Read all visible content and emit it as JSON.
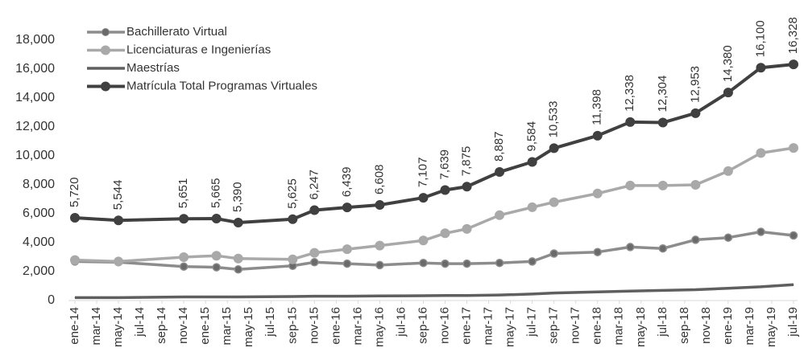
{
  "chart_data": {
    "type": "line",
    "x": [
      "2014-01",
      "2014-05",
      "2014-11",
      "2015-02",
      "2015-04",
      "2015-09",
      "2015-11",
      "2016-02",
      "2016-05",
      "2016-09",
      "2016-11",
      "2017-01",
      "2017-04",
      "2017-07",
      "2017-09",
      "2018-01",
      "2018-04",
      "2018-07",
      "2018-10",
      "2019-01",
      "2019-04",
      "2019-07"
    ],
    "xticks": [
      {
        "value": "2014-01",
        "label": "ene-14"
      },
      {
        "value": "2014-03",
        "label": "mar-14"
      },
      {
        "value": "2014-05",
        "label": "may-14"
      },
      {
        "value": "2014-07",
        "label": "jul-14"
      },
      {
        "value": "2014-09",
        "label": "sep-14"
      },
      {
        "value": "2014-11",
        "label": "nov-14"
      },
      {
        "value": "2015-01",
        "label": "ene-15"
      },
      {
        "value": "2015-03",
        "label": "mar-15"
      },
      {
        "value": "2015-05",
        "label": "may-15"
      },
      {
        "value": "2015-07",
        "label": "jul-15"
      },
      {
        "value": "2015-09",
        "label": "sep-15"
      },
      {
        "value": "2015-11",
        "label": "nov-15"
      },
      {
        "value": "2016-01",
        "label": "ene-16"
      },
      {
        "value": "2016-03",
        "label": "mar-16"
      },
      {
        "value": "2016-05",
        "label": "may-16"
      },
      {
        "value": "2016-07",
        "label": "jul-16"
      },
      {
        "value": "2016-09",
        "label": "sep-16"
      },
      {
        "value": "2016-11",
        "label": "nov-16"
      },
      {
        "value": "2017-01",
        "label": "ene-17"
      },
      {
        "value": "2017-03",
        "label": "mar-17"
      },
      {
        "value": "2017-05",
        "label": "may-17"
      },
      {
        "value": "2017-07",
        "label": "jul-17"
      },
      {
        "value": "2017-09",
        "label": "sep-17"
      },
      {
        "value": "2017-11",
        "label": "nov-17"
      },
      {
        "value": "2018-01",
        "label": "ene-18"
      },
      {
        "value": "2018-03",
        "label": "mar-18"
      },
      {
        "value": "2018-05",
        "label": "may-18"
      },
      {
        "value": "2018-07",
        "label": "jul-18"
      },
      {
        "value": "2018-09",
        "label": "sep-18"
      },
      {
        "value": "2018-11",
        "label": "nov-18"
      },
      {
        "value": "2019-01",
        "label": "ene-19"
      },
      {
        "value": "2019-03",
        "label": "mar-19"
      },
      {
        "value": "2019-05",
        "label": "may-19"
      },
      {
        "value": "2019-07",
        "label": "jul-19"
      }
    ],
    "xlim": [
      "2014-01",
      "2019-07"
    ],
    "ylim": [
      0,
      18000
    ],
    "yticks": [
      0,
      {
        "value": 2000,
        "label": "2,000"
      },
      {
        "value": 4000,
        "label": "4,000"
      },
      {
        "value": 6000,
        "label": "6,000"
      },
      {
        "value": 8000,
        "label": "8,000"
      },
      {
        "value": 10000,
        "label": "10,000"
      },
      {
        "value": 12000,
        "label": "12,000"
      },
      {
        "value": 14000,
        "label": "14,000"
      },
      {
        "value": 16000,
        "label": "16,000"
      },
      {
        "value": 18000,
        "label": "18,000"
      }
    ],
    "grid": false,
    "legend": "top-left",
    "series": [
      {
        "name": "Bachillerato Virtual",
        "color": "#8c8c8c",
        "marker": "dot",
        "values": [
          2700,
          2650,
          2350,
          2300,
          2150,
          2400,
          2650,
          2550,
          2450,
          2600,
          2550,
          2550,
          2600,
          2700,
          3250,
          3350,
          3700,
          3600,
          4200,
          4350,
          4750,
          4500
        ]
      },
      {
        "name": "Licenciaturas e Ingenierías",
        "color": "#a9a9a9",
        "marker": "circle",
        "values": [
          2800,
          2700,
          3000,
          3100,
          2900,
          2850,
          3300,
          3550,
          3800,
          4150,
          4650,
          4950,
          5900,
          6450,
          6800,
          7400,
          7950,
          7950,
          8000,
          8950,
          10200,
          10550
        ]
      },
      {
        "name": "Maestrías",
        "color": "#5f5f5f",
        "marker": "none",
        "values": [
          200,
          200,
          250,
          250,
          250,
          280,
          300,
          300,
          320,
          330,
          350,
          350,
          380,
          450,
          520,
          600,
          650,
          700,
          750,
          850,
          950,
          1100
        ]
      },
      {
        "name": "Matrícula Total Programas Virtuales",
        "color": "#404040",
        "marker": "circle",
        "values": [
          5720,
          5544,
          5651,
          5665,
          5390,
          5625,
          6247,
          6439,
          6608,
          7107,
          7639,
          7875,
          8887,
          9584,
          10533,
          11398,
          12338,
          12304,
          12953,
          14380,
          16100,
          16328
        ],
        "value_labels": [
          "5,720",
          "5,544",
          "5,651",
          "5,665",
          "5,390",
          "5,625",
          "6,247",
          "6,439",
          "6,608",
          "7,107",
          "7,639",
          "7,875",
          "8,887",
          "9,584",
          "10,533",
          "11,398",
          "12,338",
          "12,304",
          "12,953",
          "14,380",
          "16,100",
          "16,328"
        ]
      }
    ]
  }
}
